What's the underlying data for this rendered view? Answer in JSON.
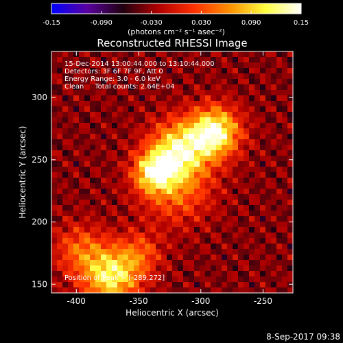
{
  "colorbar": {
    "ticks": [
      -0.15,
      -0.09,
      -0.03,
      0.03,
      0.09,
      0.15
    ],
    "tick_labels": [
      "-0.15",
      "-0.090",
      "-0.030",
      "0.030",
      "0.090",
      "0.15"
    ],
    "unit_label": "(photons cm⁻² s⁻¹ asec⁻²)",
    "range": [
      -0.15,
      0.15
    ],
    "colormap": [
      "#0000ff",
      "#5a00a0",
      "#200010",
      "#b00000",
      "#ff3000",
      "#ff9000",
      "#ffff40",
      "#ffffff"
    ]
  },
  "chart_data": {
    "type": "heatmap",
    "title": "Reconstructed RHESSI Image",
    "xlabel": "Heliocentric X (arcsec)",
    "ylabel": "Heliocentric Y (arcsec)",
    "xlim": [
      -420,
      -226
    ],
    "ylim": [
      143,
      337
    ],
    "x_ticks": [
      -400,
      -350,
      -300,
      -250
    ],
    "y_ticks": [
      150,
      200,
      250,
      300
    ],
    "annotations": [
      "15-Dec-2014 13:00:44.000 to 13:10:44.000",
      "Detectors: 3F 6F 7F 9F, Att 0",
      "Energy Range: 3.0 - 6.0 keV",
      "Clean     Total counts: 2.64E+04"
    ],
    "peak_label": "Position of Peak = [-289,272]",
    "peak": [
      -289,
      272
    ],
    "sources": [
      {
        "x": -289,
        "y": 272,
        "peak": 0.15,
        "sigma": 14
      },
      {
        "x": -318,
        "y": 258,
        "peak": 0.12,
        "sigma": 16
      },
      {
        "x": -338,
        "y": 240,
        "peak": 0.11,
        "sigma": 11
      },
      {
        "x": -320,
        "y": 228,
        "peak": 0.07,
        "sigma": 20
      },
      {
        "x": -372,
        "y": 157,
        "peak": 0.13,
        "sigma": 16
      },
      {
        "x": -398,
        "y": 178,
        "peak": 0.06,
        "sigma": 14
      },
      {
        "x": -348,
        "y": 175,
        "peak": 0.05,
        "sigma": 12
      }
    ],
    "background": -0.035
  },
  "footer": {
    "timestamp": "8-Sep-2017 09:38"
  }
}
